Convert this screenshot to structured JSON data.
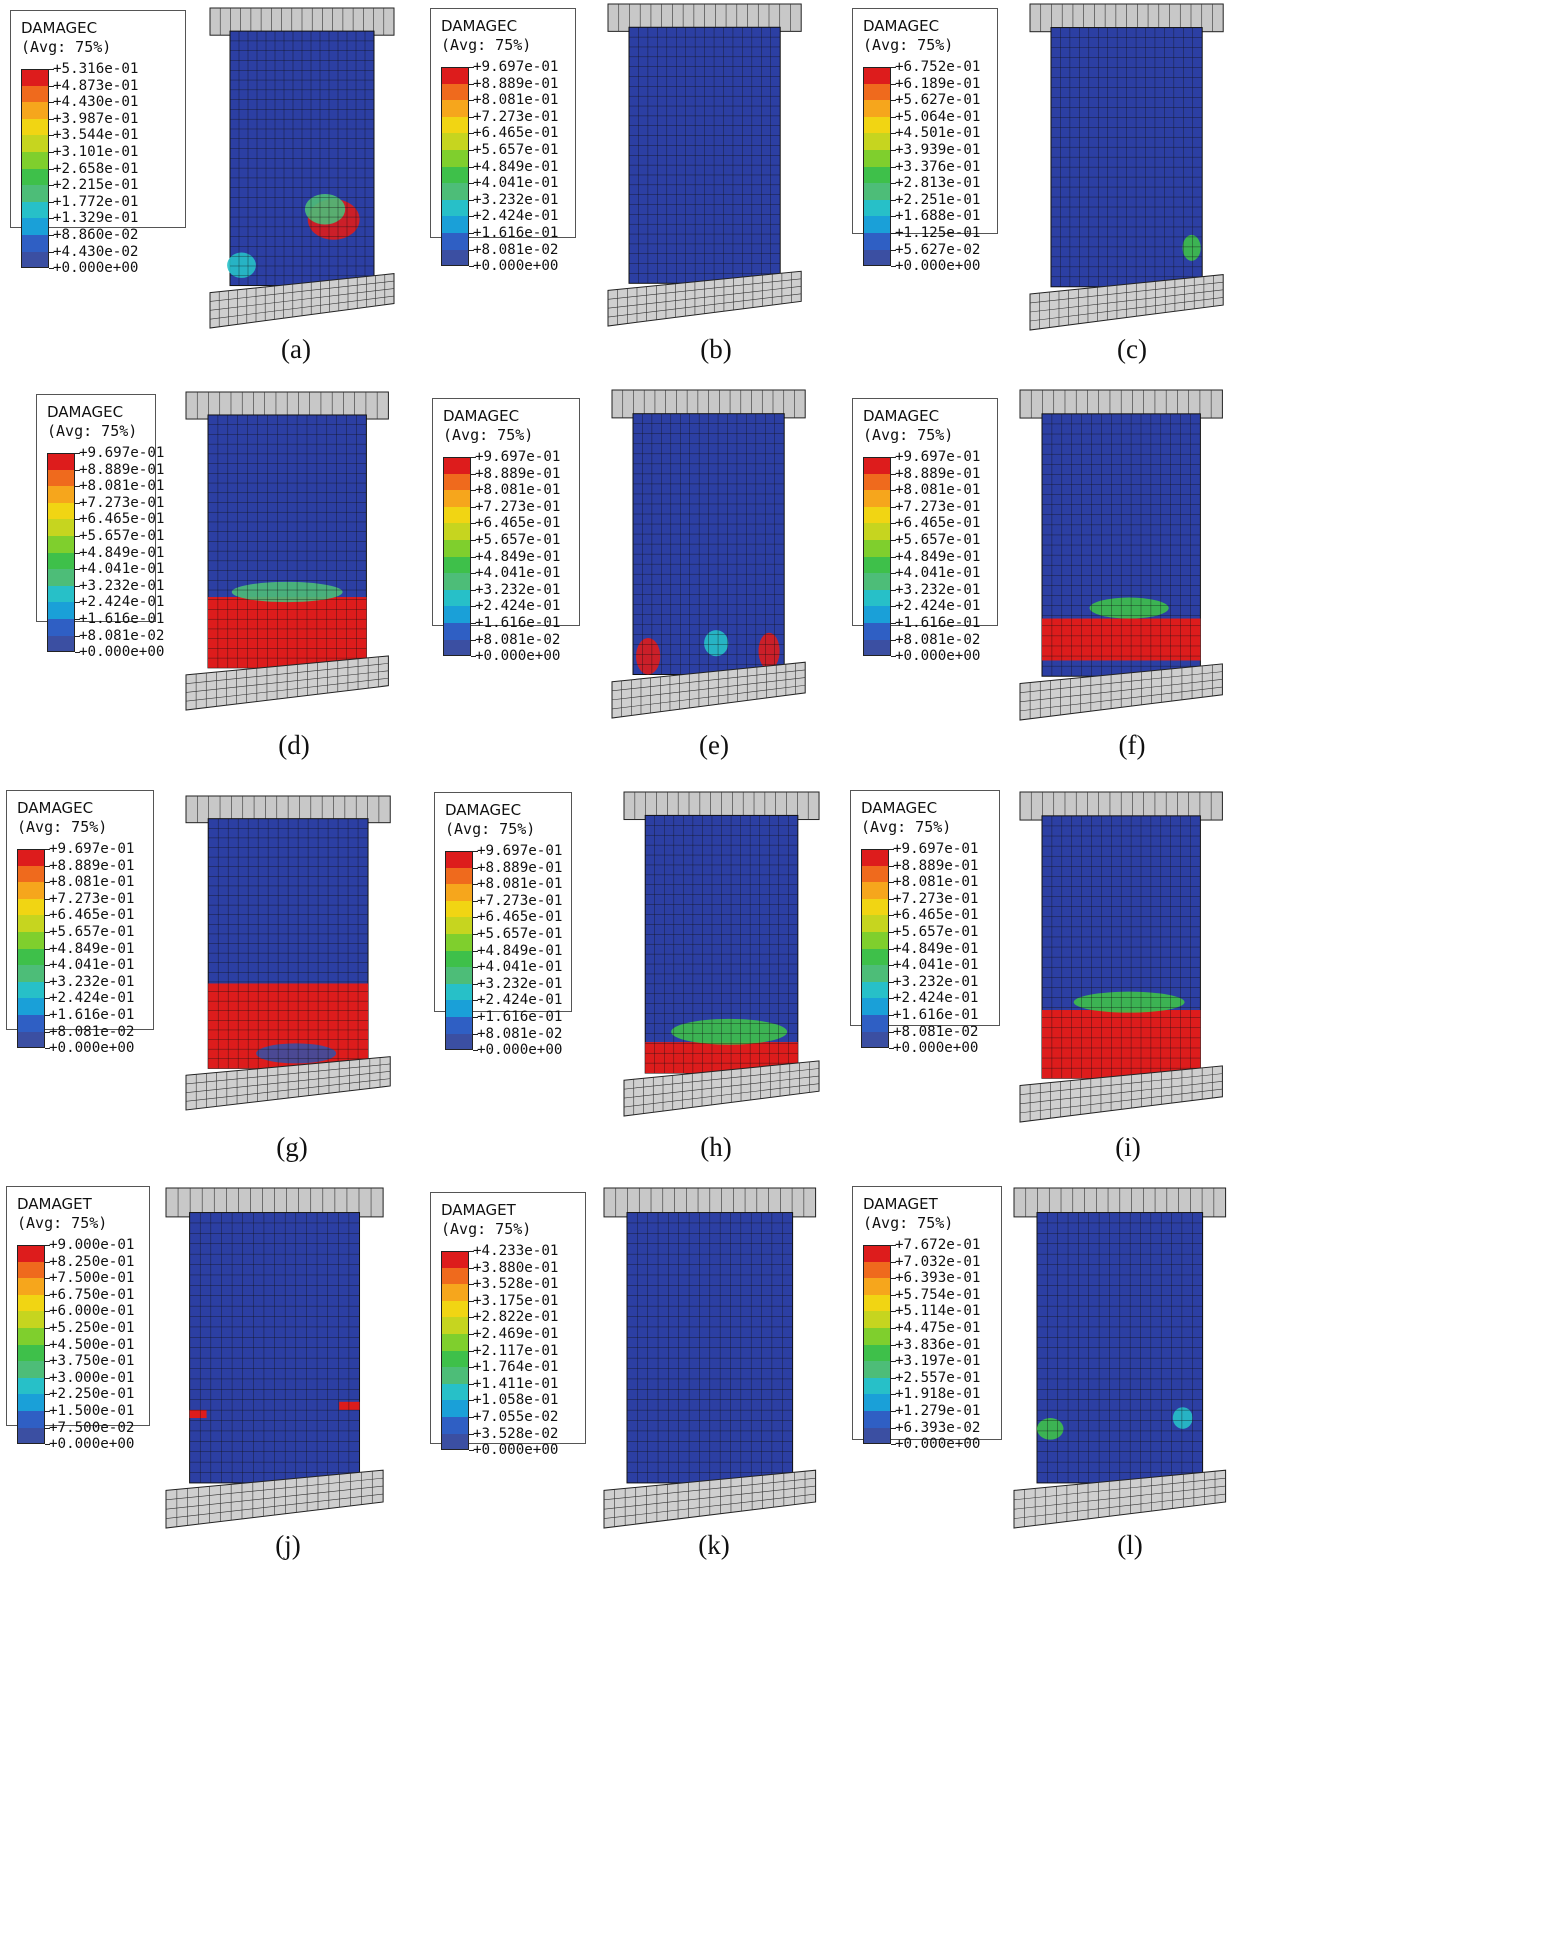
{
  "colors": [
    "#3b4fa2",
    "#2f5fc4",
    "#1aa0d8",
    "#27c0c8",
    "#4dbd78",
    "#3ec04a",
    "#7fcf2d",
    "#c6d51f",
    "#f1d513",
    "#f6a61c",
    "#ef6a1d",
    "#dd1c1c"
  ],
  "panels": [
    {
      "caption": "(a)",
      "legend": {
        "title": "DAMAGEC",
        "avg": "(Avg: 75%)",
        "values": [
          "+5.316e-01",
          "+4.873e-01",
          "+4.430e-01",
          "+3.987e-01",
          "+3.544e-01",
          "+3.101e-01",
          "+2.658e-01",
          "+2.215e-01",
          "+1.772e-01",
          "+1.329e-01",
          "+8.860e-02",
          "+4.430e-02",
          "+0.000e+00"
        ]
      }
    },
    {
      "caption": "(b)",
      "legend": {
        "title": "DAMAGEC",
        "avg": "(Avg: 75%)",
        "values": [
          "+9.697e-01",
          "+8.889e-01",
          "+8.081e-01",
          "+7.273e-01",
          "+6.465e-01",
          "+5.657e-01",
          "+4.849e-01",
          "+4.041e-01",
          "+3.232e-01",
          "+2.424e-01",
          "+1.616e-01",
          "+8.081e-02",
          "+0.000e+00"
        ]
      }
    },
    {
      "caption": "(c)",
      "legend": {
        "title": "DAMAGEC",
        "avg": "(Avg: 75%)",
        "values": [
          "+6.752e-01",
          "+6.189e-01",
          "+5.627e-01",
          "+5.064e-01",
          "+4.501e-01",
          "+3.939e-01",
          "+3.376e-01",
          "+2.813e-01",
          "+2.251e-01",
          "+1.688e-01",
          "+1.125e-01",
          "+5.627e-02",
          "+0.000e+00"
        ]
      }
    },
    {
      "caption": "(d)",
      "legend": {
        "title": "DAMAGEC",
        "avg": "(Avg: 75%)",
        "values": [
          "+9.697e-01",
          "+8.889e-01",
          "+8.081e-01",
          "+7.273e-01",
          "+6.465e-01",
          "+5.657e-01",
          "+4.849e-01",
          "+4.041e-01",
          "+3.232e-01",
          "+2.424e-01",
          "+1.616e-01",
          "+8.081e-02",
          "+0.000e+00"
        ]
      }
    },
    {
      "caption": "(e)",
      "legend": {
        "title": "DAMAGEC",
        "avg": "(Avg: 75%)",
        "values": [
          "+9.697e-01",
          "+8.889e-01",
          "+8.081e-01",
          "+7.273e-01",
          "+6.465e-01",
          "+5.657e-01",
          "+4.849e-01",
          "+4.041e-01",
          "+3.232e-01",
          "+2.424e-01",
          "+1.616e-01",
          "+8.081e-02",
          "+0.000e+00"
        ]
      }
    },
    {
      "caption": "(f)",
      "legend": {
        "title": "DAMAGEC",
        "avg": "(Avg: 75%)",
        "values": [
          "+9.697e-01",
          "+8.889e-01",
          "+8.081e-01",
          "+7.273e-01",
          "+6.465e-01",
          "+5.657e-01",
          "+4.849e-01",
          "+4.041e-01",
          "+3.232e-01",
          "+2.424e-01",
          "+1.616e-01",
          "+8.081e-02",
          "+0.000e+00"
        ]
      }
    },
    {
      "caption": "(g)",
      "legend": {
        "title": "DAMAGEC",
        "avg": "(Avg: 75%)",
        "values": [
          "+9.697e-01",
          "+8.889e-01",
          "+8.081e-01",
          "+7.273e-01",
          "+6.465e-01",
          "+5.657e-01",
          "+4.849e-01",
          "+4.041e-01",
          "+3.232e-01",
          "+2.424e-01",
          "+1.616e-01",
          "+8.081e-02",
          "+0.000e+00"
        ]
      }
    },
    {
      "caption": "(h)",
      "legend": {
        "title": "DAMAGEC",
        "avg": "(Avg: 75%)",
        "values": [
          "+9.697e-01",
          "+8.889e-01",
          "+8.081e-01",
          "+7.273e-01",
          "+6.465e-01",
          "+5.657e-01",
          "+4.849e-01",
          "+4.041e-01",
          "+3.232e-01",
          "+2.424e-01",
          "+1.616e-01",
          "+8.081e-02",
          "+0.000e+00"
        ]
      }
    },
    {
      "caption": "(i)",
      "legend": {
        "title": "DAMAGEC",
        "avg": "(Avg: 75%)",
        "values": [
          "+9.697e-01",
          "+8.889e-01",
          "+8.081e-01",
          "+7.273e-01",
          "+6.465e-01",
          "+5.657e-01",
          "+4.849e-01",
          "+4.041e-01",
          "+3.232e-01",
          "+2.424e-01",
          "+1.616e-01",
          "+8.081e-02",
          "+0.000e+00"
        ]
      }
    },
    {
      "caption": "(j)",
      "legend": {
        "title": "DAMAGET",
        "avg": "(Avg: 75%)",
        "values": [
          "+9.000e-01",
          "+8.250e-01",
          "+7.500e-01",
          "+6.750e-01",
          "+6.000e-01",
          "+5.250e-01",
          "+4.500e-01",
          "+3.750e-01",
          "+3.000e-01",
          "+2.250e-01",
          "+1.500e-01",
          "+7.500e-02",
          "+0.000e+00"
        ]
      }
    },
    {
      "caption": "(k)",
      "legend": {
        "title": "DAMAGET",
        "avg": "(Avg: 75%)",
        "values": [
          "+4.233e-01",
          "+3.880e-01",
          "+3.528e-01",
          "+3.175e-01",
          "+2.822e-01",
          "+2.469e-01",
          "+2.117e-01",
          "+1.764e-01",
          "+1.411e-01",
          "+1.058e-01",
          "+7.055e-02",
          "+3.528e-02",
          "+0.000e+00"
        ]
      }
    },
    {
      "caption": "(l)",
      "legend": {
        "title": "DAMAGET",
        "avg": "(Avg: 75%)",
        "values": [
          "+7.672e-01",
          "+7.032e-01",
          "+6.393e-01",
          "+5.754e-01",
          "+5.114e-01",
          "+4.475e-01",
          "+3.836e-01",
          "+3.197e-01",
          "+2.557e-01",
          "+1.918e-01",
          "+1.279e-01",
          "+6.393e-02",
          "+0.000e+00"
        ]
      }
    }
  ]
}
